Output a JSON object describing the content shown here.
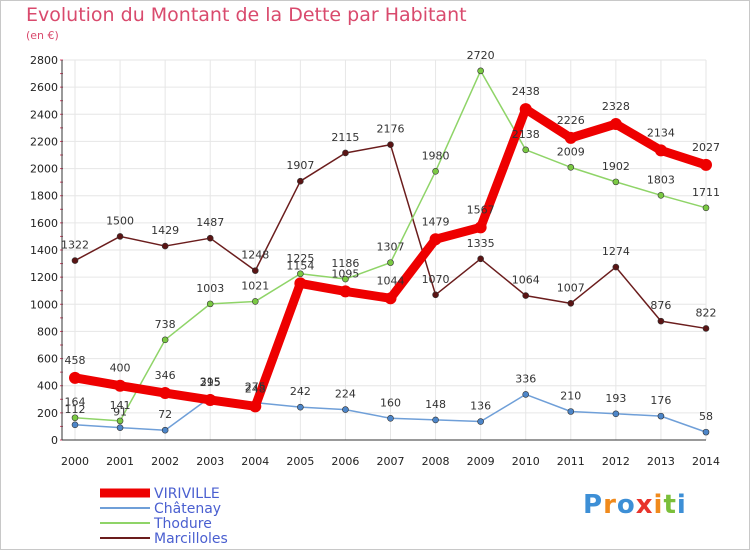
{
  "title": "Evolution du Montant de la Dette par Habitant",
  "subtitle": "(en €)",
  "logo_text": "Proxiti",
  "colors": {
    "title": "#d94a6d",
    "grid": "#e6e6e6",
    "axis_tick": "#d94a6d"
  },
  "chart_data": {
    "type": "line",
    "title": "Evolution du Montant de la Dette par Habitant",
    "subtitle": "(en €)",
    "x": [
      2000,
      2001,
      2002,
      2003,
      2004,
      2005,
      2006,
      2007,
      2008,
      2009,
      2010,
      2011,
      2012,
      2013,
      2014
    ],
    "ylim": [
      0,
      2800
    ],
    "yticks": [
      0,
      200,
      400,
      600,
      800,
      1000,
      1200,
      1400,
      1600,
      1800,
      2000,
      2200,
      2400,
      2600,
      2800
    ],
    "grid": true,
    "legend_position": "bottom-left",
    "series": [
      {
        "name": "Marcilloles",
        "color": "#6b1d1d",
        "marker": "#5a1414",
        "width": 1.5,
        "radius": 3,
        "label_offset": -12,
        "values": [
          1322,
          1500,
          1429,
          1487,
          1248,
          1907,
          2115,
          2176,
          1070,
          1335,
          1064,
          1007,
          1274,
          876,
          822
        ]
      },
      {
        "name": "Thodure",
        "color": "#8fd468",
        "marker": "#7ac943",
        "width": 1.5,
        "radius": 3,
        "label_offset": -12,
        "values": [
          164,
          141,
          738,
          1003,
          1021,
          1225,
          1186,
          1307,
          1980,
          2720,
          2138,
          2009,
          1902,
          1803,
          1711
        ]
      },
      {
        "name": "Châtenay",
        "color": "#6f9fd8",
        "marker": "#4d86c9",
        "width": 1.5,
        "radius": 3,
        "label_offset": -12,
        "values": [
          112,
          91,
          72,
          315,
          275,
          242,
          224,
          160,
          148,
          136,
          336,
          210,
          193,
          176,
          58
        ]
      },
      {
        "name": "VIRIVILLE",
        "color": "#ee0000",
        "marker": "#ee0000",
        "width": 9,
        "radius": 6,
        "label_offset": -14,
        "values": [
          458,
          400,
          346,
          295,
          248,
          1154,
          1095,
          1044,
          1479,
          1567,
          2438,
          2226,
          2328,
          2134,
          2027
        ]
      }
    ],
    "legend_order": [
      "VIRIVILLE",
      "Châtenay",
      "Thodure",
      "Marcilloles"
    ]
  }
}
